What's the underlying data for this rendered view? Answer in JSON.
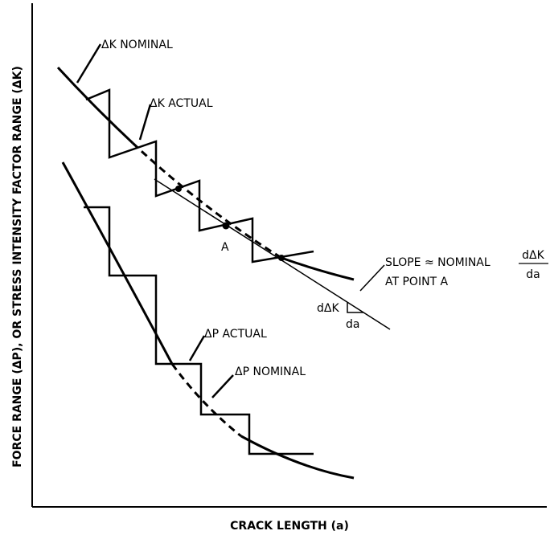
{
  "axes": {
    "x_title": "CRACK LENGTH (a)",
    "y_title": "FORCE RANGE (ΔP), OR STRESS INTENSITY FACTOR RANGE (ΔK)"
  },
  "labels": {
    "dk_nominal": "ΔK NOMINAL",
    "dk_actual": "ΔK ACTUAL",
    "point_a": "A",
    "slope_line1": "SLOPE ≈ NOMINAL",
    "slope_line2": "AT POINT A",
    "frac_num": "dΔK",
    "frac_den": "da",
    "tri_vertical": "dΔK",
    "tri_horizontal": "da",
    "dp_actual": "ΔP ACTUAL",
    "dp_nominal": "ΔP NOMINAL"
  }
}
